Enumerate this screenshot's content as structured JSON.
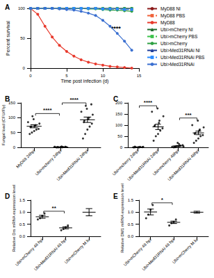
{
  "chart_data": [
    {
      "type": "line",
      "title": "A",
      "x_label": "Time post infection (d)",
      "y_label": "Percent survival",
      "x": [
        0,
        1,
        2,
        3,
        4,
        5,
        6,
        7,
        8,
        9,
        10,
        11,
        12,
        13,
        14
      ],
      "xlim": [
        0,
        15
      ],
      "xticks": [
        0,
        5,
        10,
        15
      ],
      "ylim": [
        0,
        100
      ],
      "yticks": [
        0,
        50,
        100
      ],
      "legend": "right",
      "series": [
        {
          "name": "MyD88 NI",
          "color": "#8b1a1a",
          "marker": "circle",
          "line_style": "solid",
          "values": [
            100,
            100,
            100,
            100,
            100,
            100,
            100,
            100,
            100,
            100,
            100,
            100,
            100,
            100,
            100
          ]
        },
        {
          "name": "MyD88 PBS",
          "color": "#f0623a",
          "marker": "square",
          "line_style": "dashed",
          "values": [
            100,
            100,
            100,
            100,
            100,
            100,
            100,
            100,
            100,
            100,
            99,
            99,
            99,
            98,
            98
          ]
        },
        {
          "name": "MyD88",
          "color": "#e8392c",
          "marker": "circle",
          "line_style": "solid",
          "values": [
            100,
            90,
            70,
            52,
            38,
            28,
            20,
            14,
            10,
            7,
            5,
            3,
            2,
            1,
            0
          ]
        },
        {
          "name": "Ubi>mCherry NI",
          "color": "#1e6b2e",
          "marker": "triangle",
          "line_style": "solid",
          "values": [
            100,
            100,
            100,
            100,
            100,
            100,
            100,
            100,
            100,
            100,
            100,
            100,
            100,
            100,
            100
          ]
        },
        {
          "name": "Ubi>mCherry PBS",
          "color": "#3cc24a",
          "marker": "square",
          "line_style": "dashed",
          "values": [
            100,
            100,
            100,
            100,
            100,
            100,
            100,
            100,
            100,
            100,
            100,
            100,
            100,
            100,
            100
          ]
        },
        {
          "name": "Ubi>mCherry",
          "color": "#2ea043",
          "marker": "circle",
          "line_style": "solid",
          "values": [
            100,
            100,
            100,
            100,
            100,
            100,
            100,
            100,
            99,
            99,
            98,
            97,
            97,
            96,
            95
          ]
        },
        {
          "name": "Ubi>Med31RNAi NI",
          "color": "#1f3d99",
          "marker": "triangle",
          "line_style": "solid",
          "values": [
            100,
            100,
            100,
            100,
            100,
            100,
            100,
            100,
            100,
            100,
            100,
            100,
            100,
            100,
            100
          ]
        },
        {
          "name": "Ubi>Med31RNAi PBS",
          "color": "#2b8cff",
          "marker": "square",
          "line_style": "dashed",
          "values": [
            100,
            100,
            100,
            100,
            100,
            100,
            100,
            100,
            100,
            100,
            99,
            99,
            99,
            98,
            98
          ]
        },
        {
          "name": "Ubi>Med31RNAi",
          "color": "#3a6fd0",
          "marker": "circle",
          "line_style": "solid",
          "values": [
            100,
            100,
            100,
            100,
            99,
            98,
            97,
            95,
            92,
            88,
            80,
            70,
            58,
            45,
            30
          ]
        }
      ],
      "annotations": [
        {
          "text": "****"
        }
      ]
    },
    {
      "type": "scatter",
      "title": "B",
      "y_label": "Fungal load (CFU/Fly)",
      "categories": [
        "MyD88 24hpi",
        "Ubi>mcherry 24hpi",
        "Ubi>Med31RNAi 24hpi"
      ],
      "points": [
        [
          45,
          50,
          55,
          60,
          62,
          68,
          70,
          72,
          75,
          80,
          85,
          95,
          105
        ],
        [
          0,
          0,
          1,
          1,
          2,
          0,
          1,
          3,
          0,
          1,
          2,
          0
        ],
        [
          30,
          45,
          60,
          70,
          80,
          85,
          90,
          95,
          100,
          110,
          120,
          130,
          140,
          145
        ]
      ],
      "means": [
        71,
        1,
        93
      ],
      "errors": [
        5,
        0.3,
        9
      ],
      "color": "#000000",
      "ylim": [
        0,
        150
      ],
      "yticks": [
        0,
        50,
        100,
        150
      ],
      "annotations": [
        {
          "text": "****",
          "between": [
            "MyD88 24hpi",
            "Ubi>mcherry 24hpi"
          ]
        },
        {
          "text": "****",
          "between": [
            "Ubi>mcherry 24hpi",
            "Ubi>Med31RNAi 24hpi"
          ]
        }
      ]
    },
    {
      "type": "scatter",
      "title": "C",
      "categories": [
        "Ubi>mcherry 24hpi",
        "Ubi>Med31RNAi 24hpi",
        "Ubi>mcherry 48hpi",
        "Ubi>Med31RNAi 48hpi"
      ],
      "points": [
        [
          0,
          1,
          0,
          2,
          1,
          0,
          3,
          1,
          0,
          2
        ],
        [
          30,
          50,
          60,
          75,
          85,
          95,
          100,
          110,
          120,
          140,
          160,
          175
        ],
        [
          0,
          2,
          5,
          8,
          10,
          3,
          1,
          15,
          6,
          4,
          2,
          20
        ],
        [
          20,
          30,
          40,
          50,
          55,
          60,
          65,
          75,
          80,
          90,
          100,
          120
        ]
      ],
      "means": [
        1,
        92,
        6.3,
        65
      ],
      "errors": [
        0.4,
        12,
        2,
        8
      ],
      "color": "#000000",
      "ylim": [
        0,
        200
      ],
      "yticks": [
        0,
        50,
        100,
        150,
        200
      ],
      "annotations": [
        {
          "text": "****",
          "between": [
            "Ubi>mcherry 24hpi",
            "Ubi>Med31RNAi 24hpi"
          ]
        },
        {
          "text": "***",
          "between": [
            "Ubi>mcherry 48hpi",
            "Ubi>Med31RNAi 48hpi"
          ]
        }
      ]
    },
    {
      "type": "scatter",
      "title": "D",
      "y_label": "Relative Drs mRNA expression level",
      "categories": [
        "Ubi>mCherry 48 hpi",
        "Ubi>Med31RNAi 48 hpi",
        "Ubi>mCherry M.lu"
      ],
      "points": [
        [
          0.7,
          0.75,
          0.85,
          0.95
        ],
        [
          0.25,
          0.3,
          0.38,
          0.45
        ],
        []
      ],
      "means": [
        0.81,
        0.35,
        1.0
      ],
      "errors": [
        0.06,
        0.04,
        0.15
      ],
      "color": "#000000",
      "ylim": [
        0,
        1.5
      ],
      "yticks": [
        {
          "value": 0,
          "label": "0.0"
        },
        {
          "value": 0.5,
          "label": "0.5"
        },
        {
          "value": 1,
          "label": "1.0"
        },
        {
          "value": 1.5,
          "label": "1.5"
        }
      ],
      "annotations": [
        {
          "text": "**",
          "between": [
            "Ubi>mCherry 48 hpi",
            "Ubi>Med31RNAi 48 hpi"
          ]
        }
      ]
    },
    {
      "type": "scatter",
      "title": "E",
      "y_label": "Relative DM1 mRNA expression level",
      "categories": [
        "Ubi>mCherry 48 hpi",
        "Ubi>Med31RNAi 48 hpi",
        "Ubi>mCherry M.lu"
      ],
      "points": [
        [
          0.75,
          0.9,
          1.1,
          1.3
        ],
        [
          0.45,
          0.55,
          0.6,
          0.7
        ],
        []
      ],
      "means": [
        1.01,
        0.58,
        1.0
      ],
      "errors": [
        0.12,
        0.05,
        0.04
      ],
      "color": "#000000",
      "ylim": [
        0,
        1.5
      ],
      "yticks": [
        {
          "value": 0,
          "label": "0.0"
        },
        {
          "value": 0.5,
          "label": "0.5"
        },
        {
          "value": 1,
          "label": "1.0"
        },
        {
          "value": 1.5,
          "label": "1.5"
        }
      ],
      "annotations": [
        {
          "text": "*",
          "between": [
            "Ubi>mCherry 48 hpi",
            "Ubi>Med31RNAi 48 hpi"
          ]
        }
      ]
    }
  ]
}
